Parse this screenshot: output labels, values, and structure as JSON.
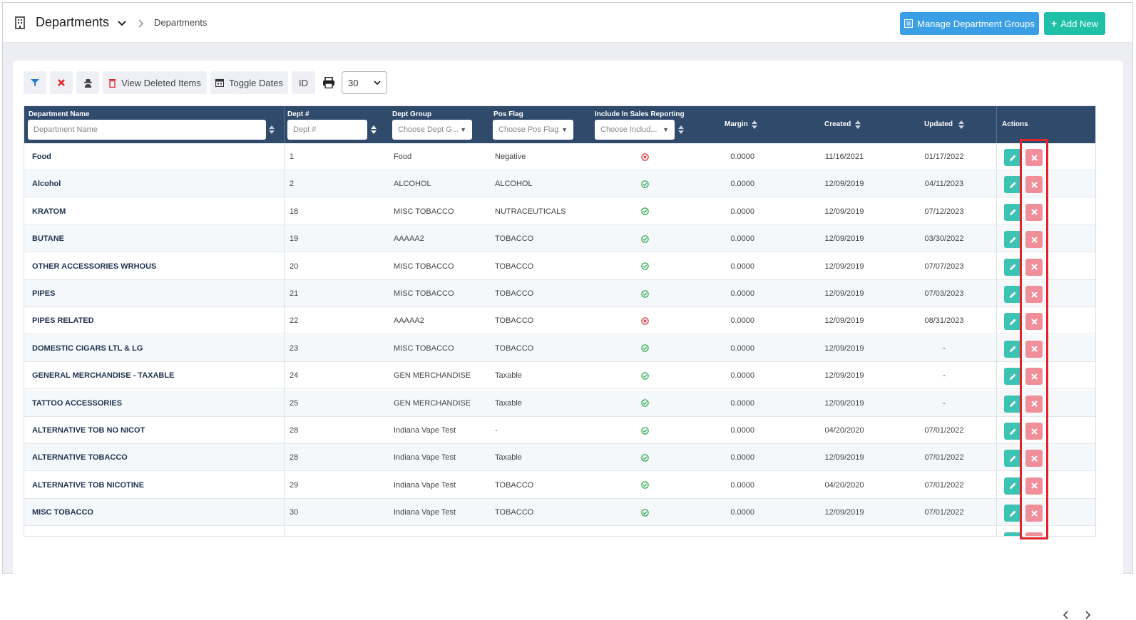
{
  "header": {
    "title": "Departments",
    "breadcrumb": "Departments",
    "manage_groups_label": "Manage Department Groups",
    "add_new_label": "Add New"
  },
  "toolbar": {
    "view_deleted_label": "View Deleted Items",
    "toggle_dates_label": "Toggle Dates",
    "id_label": "ID",
    "page_size": "30"
  },
  "table": {
    "columns": {
      "name": "Department Name",
      "dept_num": "Dept #",
      "group": "Dept Group",
      "pos_flag": "Pos Flag",
      "include": "Include In Sales Reporting",
      "margin": "Margin",
      "created": "Created",
      "updated": "Updated",
      "actions": "Actions"
    },
    "filters": {
      "name_placeholder": "Department Name",
      "dept_placeholder": "Dept #",
      "group_placeholder": "Choose Dept G...",
      "pos_placeholder": "Choose Pos Flag",
      "include_placeholder": "Choose Includ..."
    },
    "rows": [
      {
        "name": "Food",
        "num": "1",
        "group": "Food",
        "pos": "Negative",
        "include": false,
        "margin": "0.0000",
        "created": "11/16/2021",
        "updated": "01/17/2022"
      },
      {
        "name": "Alcohol",
        "num": "2",
        "group": "ALCOHOL",
        "pos": "ALCOHOL",
        "include": true,
        "margin": "0.0000",
        "created": "12/09/2019",
        "updated": "04/11/2023"
      },
      {
        "name": "KRATOM",
        "num": "18",
        "group": "MISC TOBACCO",
        "pos": "NUTRACEUTICALS",
        "include": true,
        "margin": "0.0000",
        "created": "12/09/2019",
        "updated": "07/12/2023"
      },
      {
        "name": "BUTANE",
        "num": "19",
        "group": "AAAAA2",
        "pos": "TOBACCO",
        "include": true,
        "margin": "0.0000",
        "created": "12/09/2019",
        "updated": "03/30/2022"
      },
      {
        "name": "OTHER ACCESSORIES WRHOUS",
        "num": "20",
        "group": "MISC TOBACCO",
        "pos": "TOBACCO",
        "include": true,
        "margin": "0.0000",
        "created": "12/09/2019",
        "updated": "07/07/2023"
      },
      {
        "name": "PIPES",
        "num": "21",
        "group": "MISC TOBACCO",
        "pos": "TOBACCO",
        "include": true,
        "margin": "0.0000",
        "created": "12/09/2019",
        "updated": "07/03/2023"
      },
      {
        "name": "PIPES RELATED",
        "num": "22",
        "group": "AAAAA2",
        "pos": "TOBACCO",
        "include": false,
        "margin": "0.0000",
        "created": "12/09/2019",
        "updated": "08/31/2023"
      },
      {
        "name": "DOMESTIC CIGARS LTL & LG",
        "num": "23",
        "group": "MISC TOBACCO",
        "pos": "TOBACCO",
        "include": true,
        "margin": "0.0000",
        "created": "12/09/2019",
        "updated": "-"
      },
      {
        "name": "GENERAL MERCHANDISE - TAXABLE",
        "num": "24",
        "group": "GEN MERCHANDISE",
        "pos": "Taxable",
        "include": true,
        "margin": "0.0000",
        "created": "12/09/2019",
        "updated": "-"
      },
      {
        "name": "TATTOO ACCESSORIES",
        "num": "25",
        "group": "GEN MERCHANDISE",
        "pos": "Taxable",
        "include": true,
        "margin": "0.0000",
        "created": "12/09/2019",
        "updated": "-"
      },
      {
        "name": "ALTERNATIVE TOB NO NICOT",
        "num": "28",
        "group": "Indiana Vape Test",
        "pos": "-",
        "include": true,
        "margin": "0.0000",
        "created": "04/20/2020",
        "updated": "07/01/2022"
      },
      {
        "name": "ALTERNATIVE TOBACCO",
        "num": "28",
        "group": "Indiana Vape Test",
        "pos": "Taxable",
        "include": true,
        "margin": "0.0000",
        "created": "12/09/2019",
        "updated": "07/01/2022"
      },
      {
        "name": "ALTERNATIVE TOB NICOTINE",
        "num": "29",
        "group": "Indiana Vape Test",
        "pos": "TOBACCO",
        "include": true,
        "margin": "0.0000",
        "created": "04/20/2020",
        "updated": "07/01/2022"
      },
      {
        "name": "MISC TOBACCO",
        "num": "30",
        "group": "Indiana Vape Test",
        "pos": "TOBACCO",
        "include": true,
        "margin": "0.0000",
        "created": "12/09/2019",
        "updated": "07/01/2022"
      }
    ]
  },
  "colors": {
    "header_bg": "#2f4a6b",
    "primary_blue": "#3b9fe6",
    "teal": "#1fbfa8",
    "delete_pink": "#f08f99",
    "highlight_red": "#e0242c",
    "check_green": "#2aa84a",
    "cross_red": "#d9343c"
  }
}
